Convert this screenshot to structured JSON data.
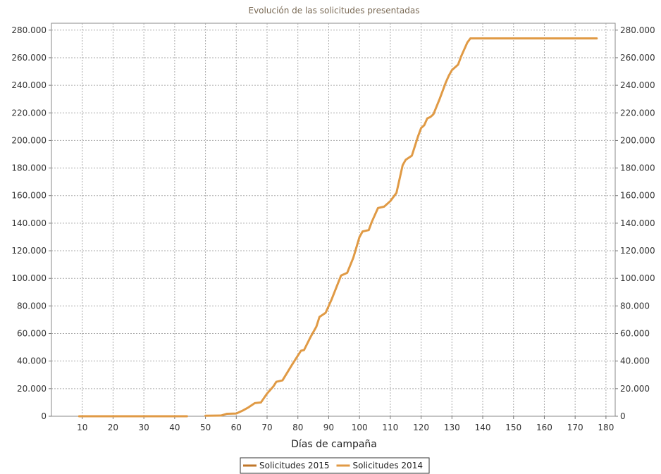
{
  "chart_data": {
    "type": "line",
    "title": "Evolución de las solicitudes presentadas",
    "xlabel": "Días de campaña",
    "ylabel": "",
    "xlim": [
      0,
      183
    ],
    "ylim": [
      0,
      285000
    ],
    "x_ticks": [
      10,
      20,
      30,
      40,
      50,
      60,
      70,
      80,
      90,
      100,
      110,
      120,
      130,
      140,
      150,
      160,
      170,
      180
    ],
    "x_tick_labels": [
      "10",
      "20",
      "30",
      "40",
      "50",
      "60",
      "70",
      "80",
      "90",
      "100",
      "110",
      "120",
      "130",
      "140",
      "150",
      "160",
      "170",
      "180"
    ],
    "y_ticks": [
      0,
      20000,
      40000,
      60000,
      80000,
      100000,
      120000,
      140000,
      160000,
      180000,
      200000,
      220000,
      240000,
      260000,
      280000
    ],
    "y_tick_labels": [
      "0",
      "20.000",
      "40.000",
      "60.000",
      "80.000",
      "100.000",
      "120.000",
      "140.000",
      "160.000",
      "180.000",
      "200.000",
      "220.000",
      "240.000",
      "260.000",
      "280.000"
    ],
    "grid": true,
    "legend_position": "bottom-center",
    "series": [
      {
        "name": "Solicitudes 2015",
        "color": "#c0772a",
        "x": [],
        "y": []
      },
      {
        "name": "Solicitudes 2014",
        "color": "#e09a45",
        "x": [
          9,
          44,
          48,
          50,
          55,
          57,
          60,
          62,
          64,
          66,
          68,
          70,
          72,
          73,
          75,
          78,
          81,
          82,
          84,
          86,
          87,
          89,
          91,
          94,
          96,
          98,
          100,
          101,
          103,
          104,
          106,
          108,
          110,
          112,
          113,
          114,
          115,
          117,
          118,
          119,
          120,
          121,
          122,
          123,
          124,
          126,
          127,
          128,
          129,
          130,
          131,
          132,
          133,
          134,
          135,
          136,
          140,
          150,
          160,
          170,
          177
        ],
        "y": [
          0,
          0,
          null,
          400,
          500,
          1800,
          2000,
          4000,
          6500,
          9500,
          10000,
          16500,
          21500,
          25000,
          26000,
          37000,
          47500,
          48000,
          57000,
          65000,
          72000,
          75000,
          85000,
          102000,
          104000,
          115000,
          130000,
          134000,
          135000,
          141000,
          151000,
          152000,
          156000,
          162000,
          172000,
          182000,
          186000,
          189000,
          196000,
          203000,
          209000,
          211000,
          216000,
          217000,
          219000,
          230000,
          236000,
          242000,
          247000,
          251000,
          253000,
          255000,
          261000,
          266000,
          271000,
          274000,
          274000,
          274000,
          274000,
          274000,
          274000
        ]
      }
    ]
  }
}
